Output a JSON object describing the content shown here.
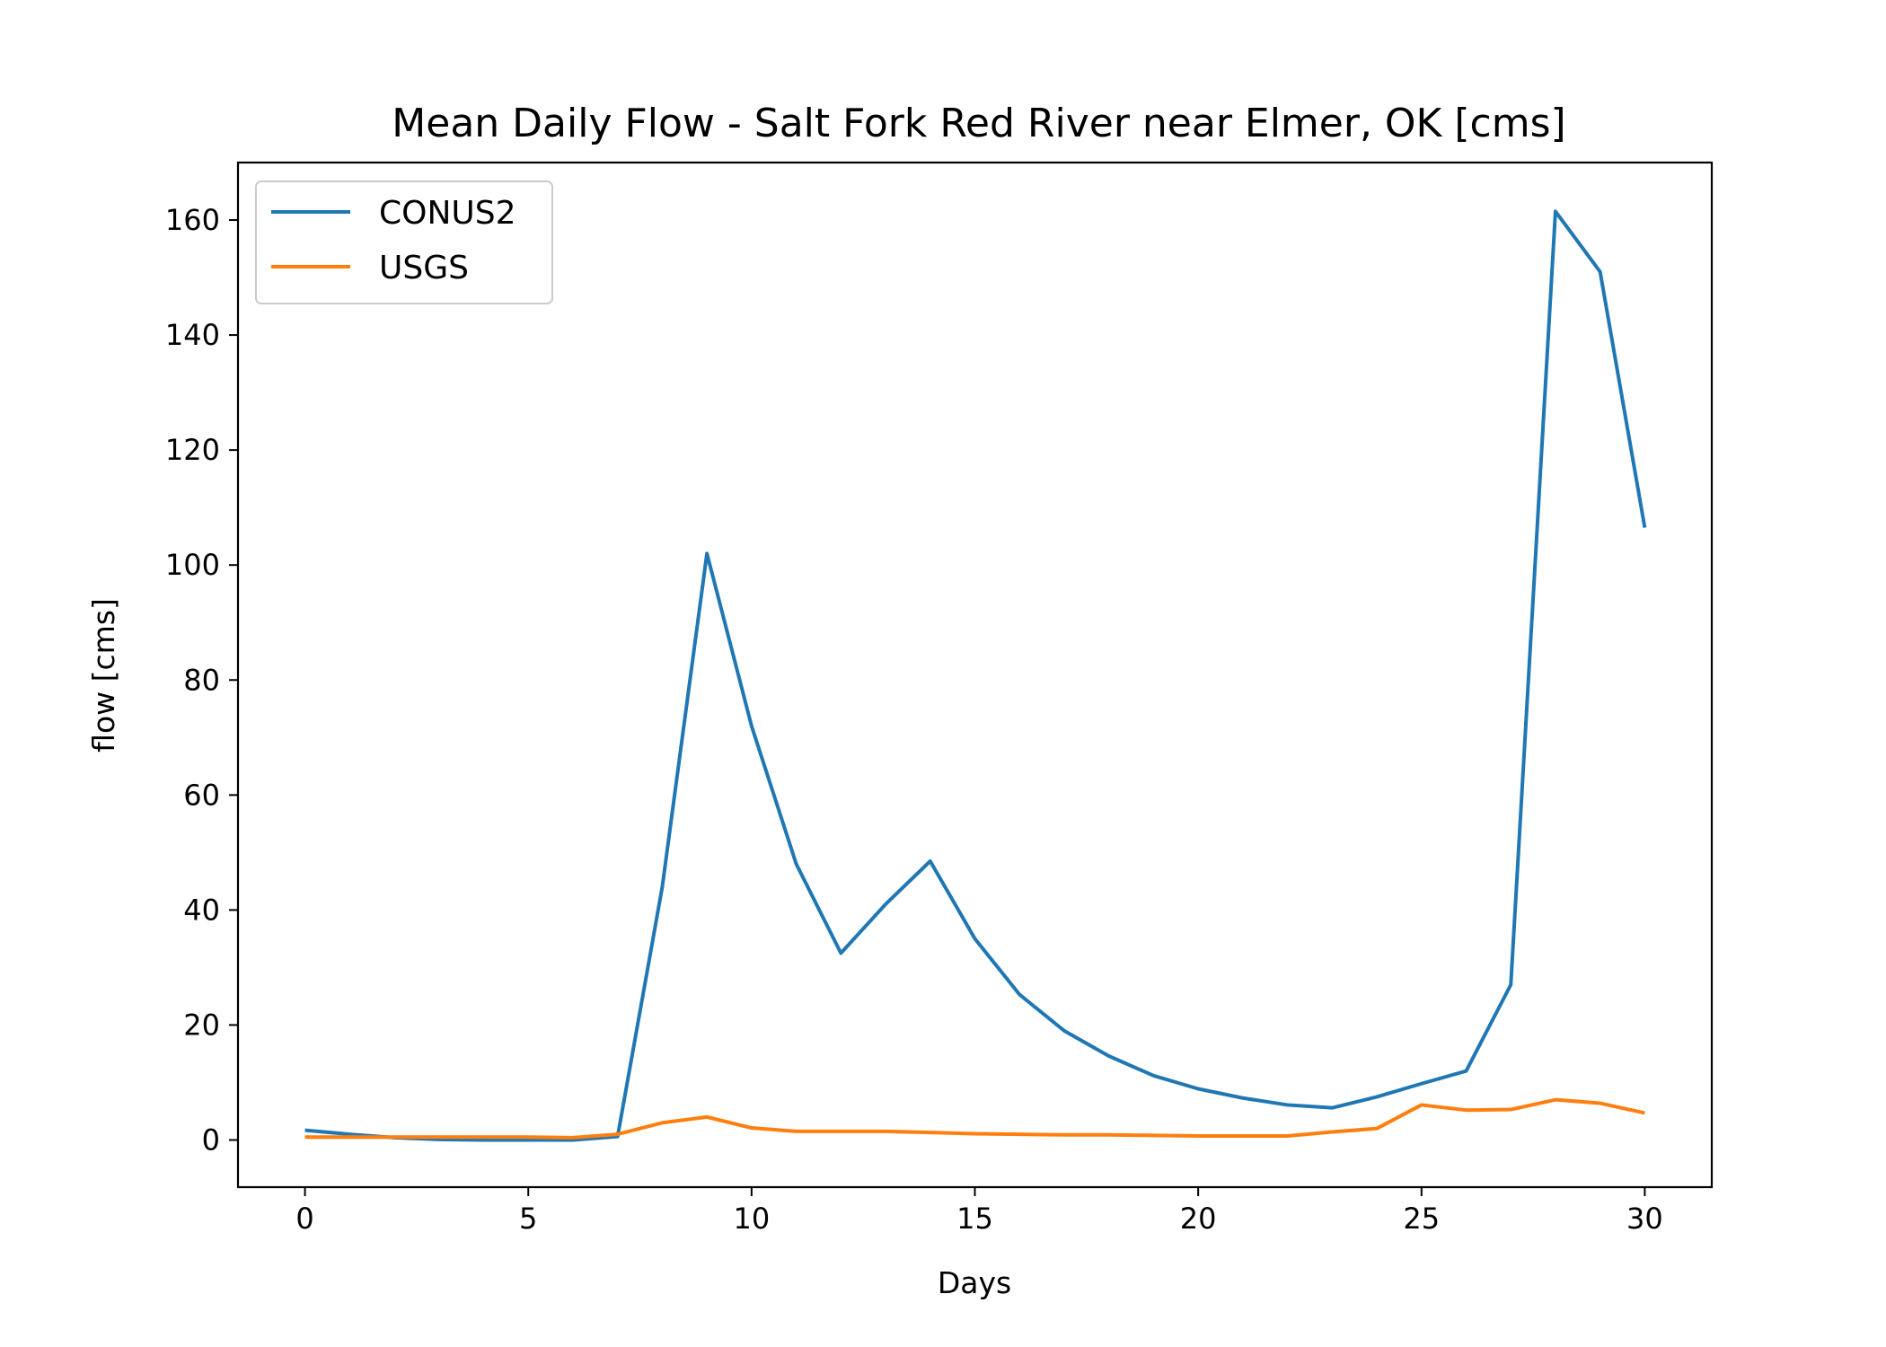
{
  "chart_data": {
    "type": "line",
    "title": "Mean Daily Flow - Salt Fork Red River near Elmer, OK [cms]",
    "xlabel": "Days",
    "ylabel": "flow [cms]",
    "xlim": [
      -1.5,
      31.5
    ],
    "ylim": [
      -8.2,
      170
    ],
    "xticks": [
      0,
      5,
      10,
      15,
      20,
      25,
      30
    ],
    "yticks": [
      0,
      20,
      40,
      60,
      80,
      100,
      120,
      140,
      160
    ],
    "grid": false,
    "legend_position": "upper left",
    "x": [
      0,
      1,
      2,
      3,
      4,
      5,
      6,
      7,
      8,
      9,
      10,
      11,
      12,
      13,
      14,
      15,
      16,
      17,
      18,
      19,
      20,
      21,
      22,
      23,
      24,
      25,
      26,
      27,
      28,
      29,
      30
    ],
    "series": [
      {
        "name": "CONUS2",
        "color": "#1f77b4",
        "values": [
          1.7,
          1.0,
          0.4,
          0.1,
          0.0,
          0.0,
          0.0,
          0.6,
          44,
          102,
          72,
          48,
          32.5,
          41,
          48.5,
          35,
          25.3,
          19,
          14.6,
          11.2,
          8.9,
          7.3,
          6.1,
          5.6,
          7.5,
          9.8,
          12,
          27,
          161.5,
          151,
          106.5
        ]
      },
      {
        "name": "USGS",
        "color": "#ff7f0e",
        "values": [
          0.5,
          0.5,
          0.5,
          0.5,
          0.5,
          0.5,
          0.4,
          1.0,
          3.0,
          4.0,
          2.1,
          1.5,
          1.5,
          1.5,
          1.3,
          1.1,
          1.0,
          0.9,
          0.9,
          0.8,
          0.7,
          0.7,
          0.7,
          1.4,
          2.0,
          6.1,
          5.2,
          5.3,
          7.0,
          6.4,
          4.7
        ]
      }
    ]
  }
}
